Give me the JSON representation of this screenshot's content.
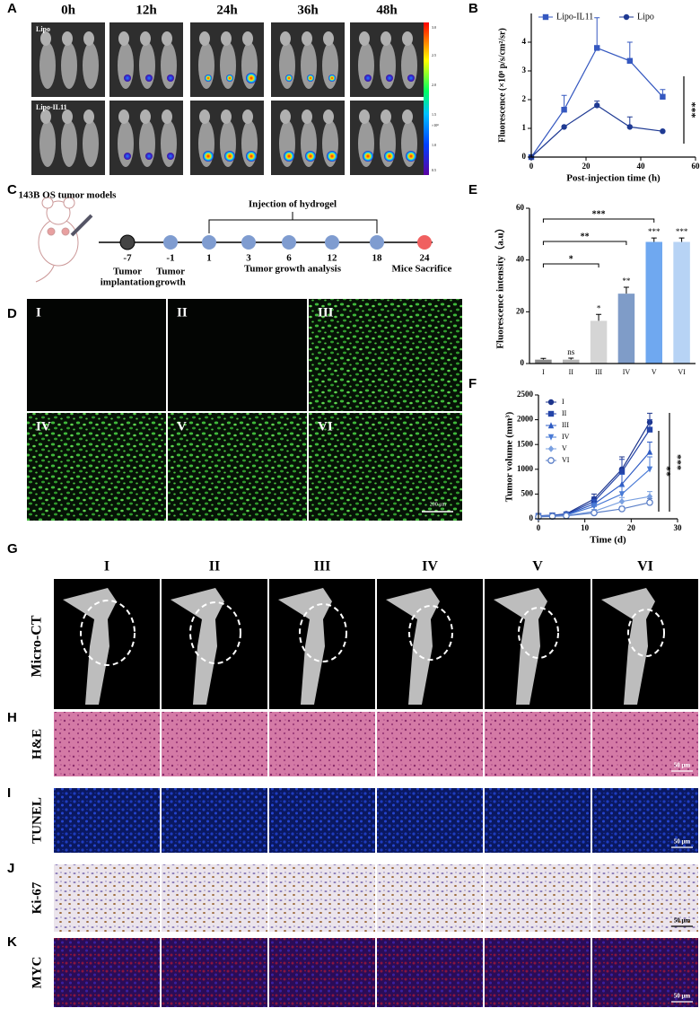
{
  "panel_labels": [
    "A",
    "B",
    "C",
    "D",
    "E",
    "F",
    "G",
    "H",
    "I",
    "J",
    "K"
  ],
  "panel_a": {
    "timepoints": [
      "0h",
      "12h",
      "24h",
      "36h",
      "48h"
    ],
    "rows": [
      "Lipo",
      "Lipo-IL11"
    ],
    "colorbar_ticks": [
      "3.0",
      "2.5",
      "2.0",
      "1.5",
      "1.0",
      "0.5"
    ],
    "colorbar_unit": "×10⁸"
  },
  "panel_c": {
    "title": "143B OS tumor models",
    "injection": "Injection of hydrogel",
    "days": [
      "-7",
      "-1",
      "1",
      "3",
      "6",
      "12",
      "18",
      "24"
    ],
    "implantation": [
      "Tumor",
      "implantation"
    ],
    "growth": [
      "Tumor",
      "growth"
    ],
    "analysis": "Tumor growth analysis",
    "sacrifice": "Mice Sacrifice"
  },
  "panel_d": {
    "groups": [
      "I",
      "II",
      "III",
      "IV",
      "V",
      "VI"
    ],
    "scale_bar": "200 μm"
  },
  "panel_g": {
    "groups": [
      "I",
      "II",
      "III",
      "IV",
      "V",
      "VI"
    ],
    "row_label": "Micro-CT"
  },
  "stain_rows": [
    {
      "label": "H&E",
      "scale_bar": "50 μm"
    },
    {
      "label": "TUNEL",
      "scale_bar": "50 μm"
    },
    {
      "label": "Ki-67",
      "scale_bar": "50 μm"
    },
    {
      "label": "MYC",
      "scale_bar": "50 μm"
    }
  ],
  "chart_data": [
    {
      "type": "line",
      "x": [
        0,
        12,
        24,
        36,
        48
      ],
      "series": [
        {
          "name": "Lipo-IL11",
          "color": "#3558c0",
          "marker": "square",
          "values": [
            0,
            1.65,
            3.8,
            3.35,
            2.1
          ],
          "errors": [
            0,
            0.5,
            1.05,
            0.65,
            0.25
          ]
        },
        {
          "name": "Lipo",
          "color": "#1f3a93",
          "marker": "circle",
          "values": [
            0,
            1.05,
            1.8,
            1.05,
            0.9
          ],
          "errors": [
            0,
            0,
            0.15,
            0.35,
            0
          ]
        }
      ],
      "xlim": [
        0,
        60
      ],
      "xticks": [
        0,
        20,
        40,
        60
      ],
      "ylim": [
        0,
        5
      ],
      "yticks": [
        0,
        1,
        2,
        3,
        4
      ],
      "xlabel": "Post-injection time (h)",
      "ylabel": "Fluorescence (×10⁸ p/s/cm²/sr)",
      "annotations": [
        "***"
      ],
      "legend": "top"
    },
    {
      "type": "bar",
      "categories": [
        "I",
        "II",
        "III",
        "IV",
        "V",
        "VI"
      ],
      "values": [
        1.5,
        1.5,
        16.5,
        27,
        47,
        47
      ],
      "errors": [
        0.5,
        0.6,
        2.5,
        2.5,
        1.5,
        1.5
      ],
      "colors": [
        "#8a8a8a",
        "#b5b5b5",
        "#d5d5d5",
        "#7f9cc8",
        "#6fa8f0",
        "#b7d3f5"
      ],
      "bar_annotations": [
        null,
        "ns",
        "*",
        "**",
        "***",
        "***"
      ],
      "comparisons": [
        {
          "from": 0,
          "to": 2,
          "text": "*"
        },
        {
          "from": 0,
          "to": 3,
          "text": "**"
        },
        {
          "from": 0,
          "to": 4,
          "text": "***"
        }
      ],
      "ylim": [
        0,
        60
      ],
      "yticks": [
        0,
        20,
        40,
        60
      ],
      "ylabel": "Fluorescence intensity（a.u）"
    },
    {
      "type": "line",
      "x": [
        0,
        3,
        6,
        12,
        18,
        24
      ],
      "series": [
        {
          "name": "I",
          "color": "#1c348c",
          "marker": "circle",
          "values": [
            60,
            70,
            100,
            400,
            1000,
            1950
          ],
          "errors": [
            10,
            15,
            20,
            100,
            250,
            180
          ]
        },
        {
          "name": "II",
          "color": "#2444a8",
          "marker": "square",
          "values": [
            60,
            70,
            90,
            350,
            950,
            1800
          ],
          "errors": [
            10,
            15,
            20,
            90,
            250,
            200
          ]
        },
        {
          "name": "III",
          "color": "#2f5cc4",
          "marker": "triangle",
          "values": [
            55,
            65,
            80,
            300,
            700,
            1350
          ],
          "errors": [
            10,
            10,
            15,
            80,
            200,
            200
          ]
        },
        {
          "name": "IV",
          "color": "#4a7bd6",
          "marker": "triangle-down",
          "values": [
            50,
            60,
            75,
            250,
            500,
            1000
          ],
          "errors": [
            10,
            10,
            15,
            60,
            150,
            250
          ]
        },
        {
          "name": "V",
          "color": "#7aa0e0",
          "marker": "diamond",
          "values": [
            45,
            55,
            65,
            150,
            350,
            450
          ],
          "errors": [
            5,
            10,
            10,
            40,
            80,
            100
          ]
        },
        {
          "name": "VI",
          "color": "#5b7fc8",
          "marker": "open-circle",
          "values": [
            40,
            50,
            60,
            120,
            200,
            330
          ],
          "errors": [
            5,
            10,
            10,
            30,
            50,
            80
          ]
        }
      ],
      "xlim": [
        0,
        30
      ],
      "xticks": [
        0,
        10,
        20,
        30
      ],
      "ylim": [
        0,
        2500
      ],
      "yticks": [
        0,
        500,
        1000,
        1500,
        2000,
        2500
      ],
      "xlabel": "Time (d)",
      "ylabel": "Tumor volume (mm³)",
      "annotations": [
        "**",
        "***"
      ],
      "legend": "top-left"
    }
  ]
}
